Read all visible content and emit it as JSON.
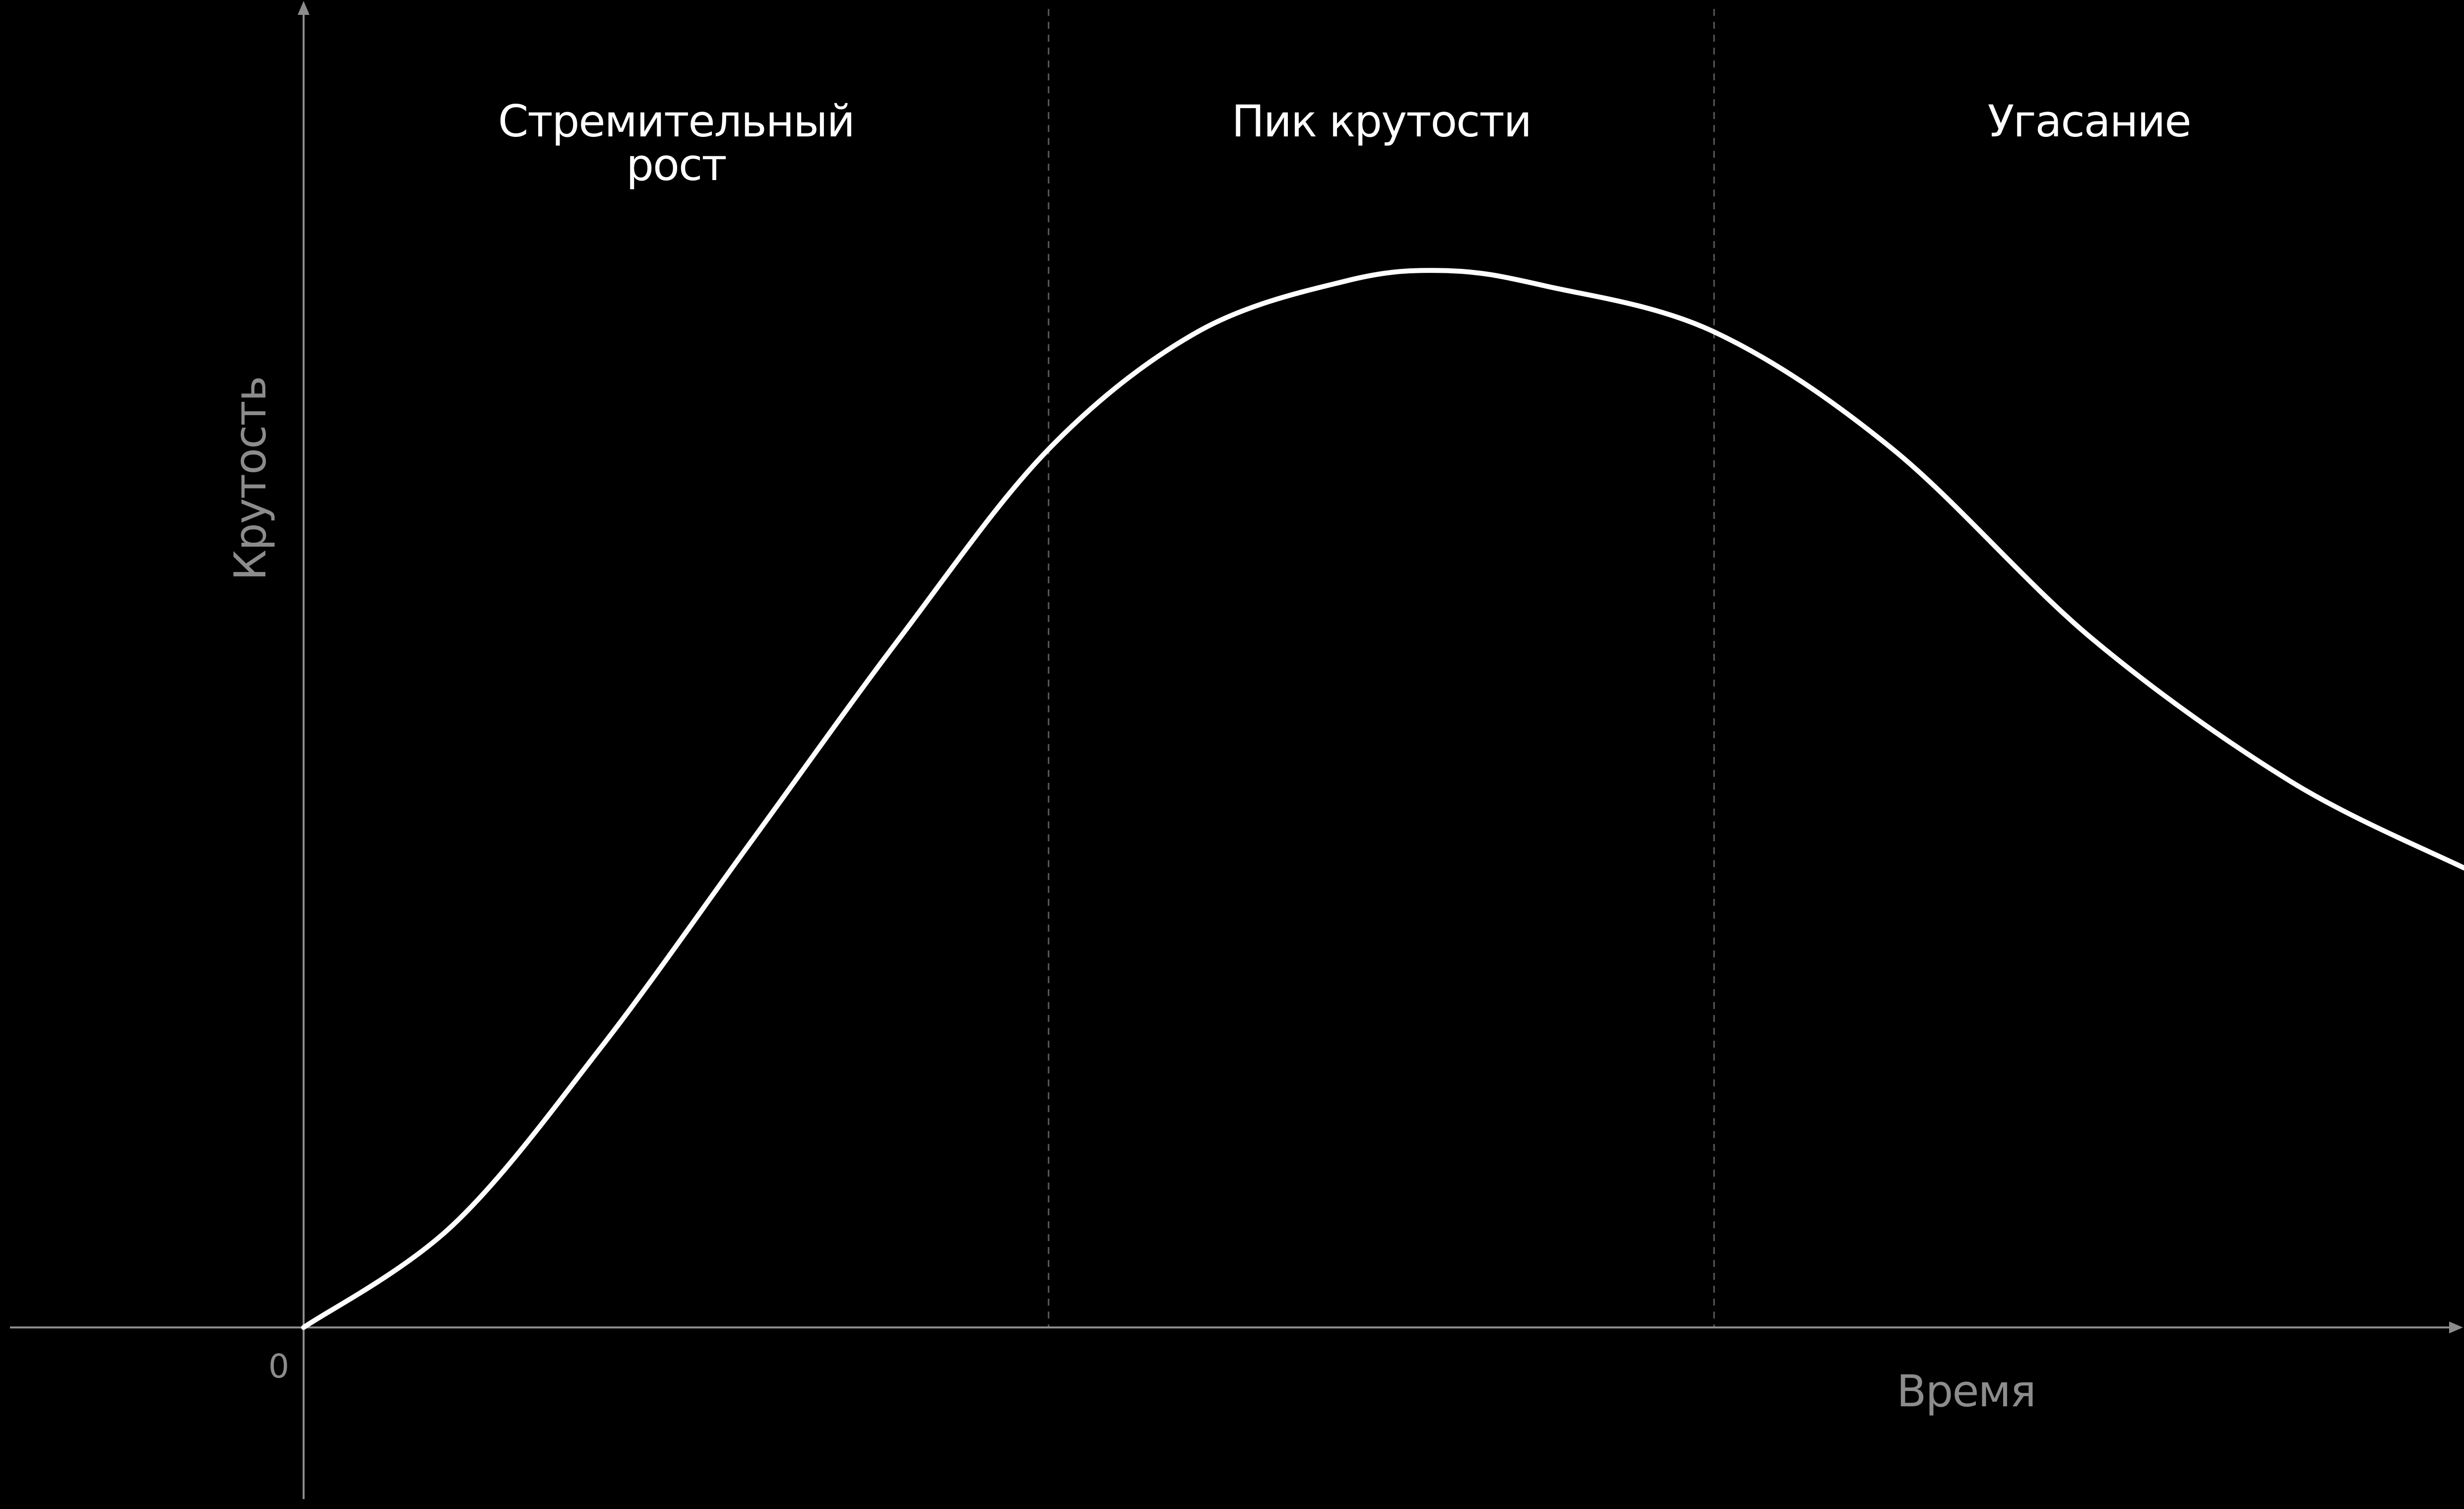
{
  "chart_data": {
    "type": "line",
    "xlabel": "Время",
    "ylabel": "Крутость",
    "origin_tick": "0",
    "phases": [
      {
        "label": "Стремительный рост"
      },
      {
        "label": "Пик крутости"
      },
      {
        "label": "Угасание"
      }
    ],
    "phase_boundaries_x": [
      1.5,
      2.84
    ],
    "xlim": [
      0,
      4.35
    ],
    "ylim": [
      0,
      2.6
    ],
    "series": [
      {
        "x": [
          0,
          0.3,
          0.6,
          0.9,
          1.2,
          1.5,
          1.8,
          2.1,
          2.3,
          2.5,
          2.84,
          3.2,
          3.6,
          4.0,
          4.35
        ],
        "y": [
          0,
          0.2,
          0.55,
          0.95,
          1.35,
          1.72,
          1.95,
          2.05,
          2.07,
          2.04,
          1.95,
          1.72,
          1.35,
          1.07,
          0.9
        ]
      }
    ],
    "colors": {
      "background": "#000000",
      "line": "#ffffff",
      "axis": "#8c8c8c",
      "divider": "#5a5a5a",
      "phase_label": "#ffffff",
      "axis_label": "#8c8c8c"
    },
    "grid": false
  }
}
